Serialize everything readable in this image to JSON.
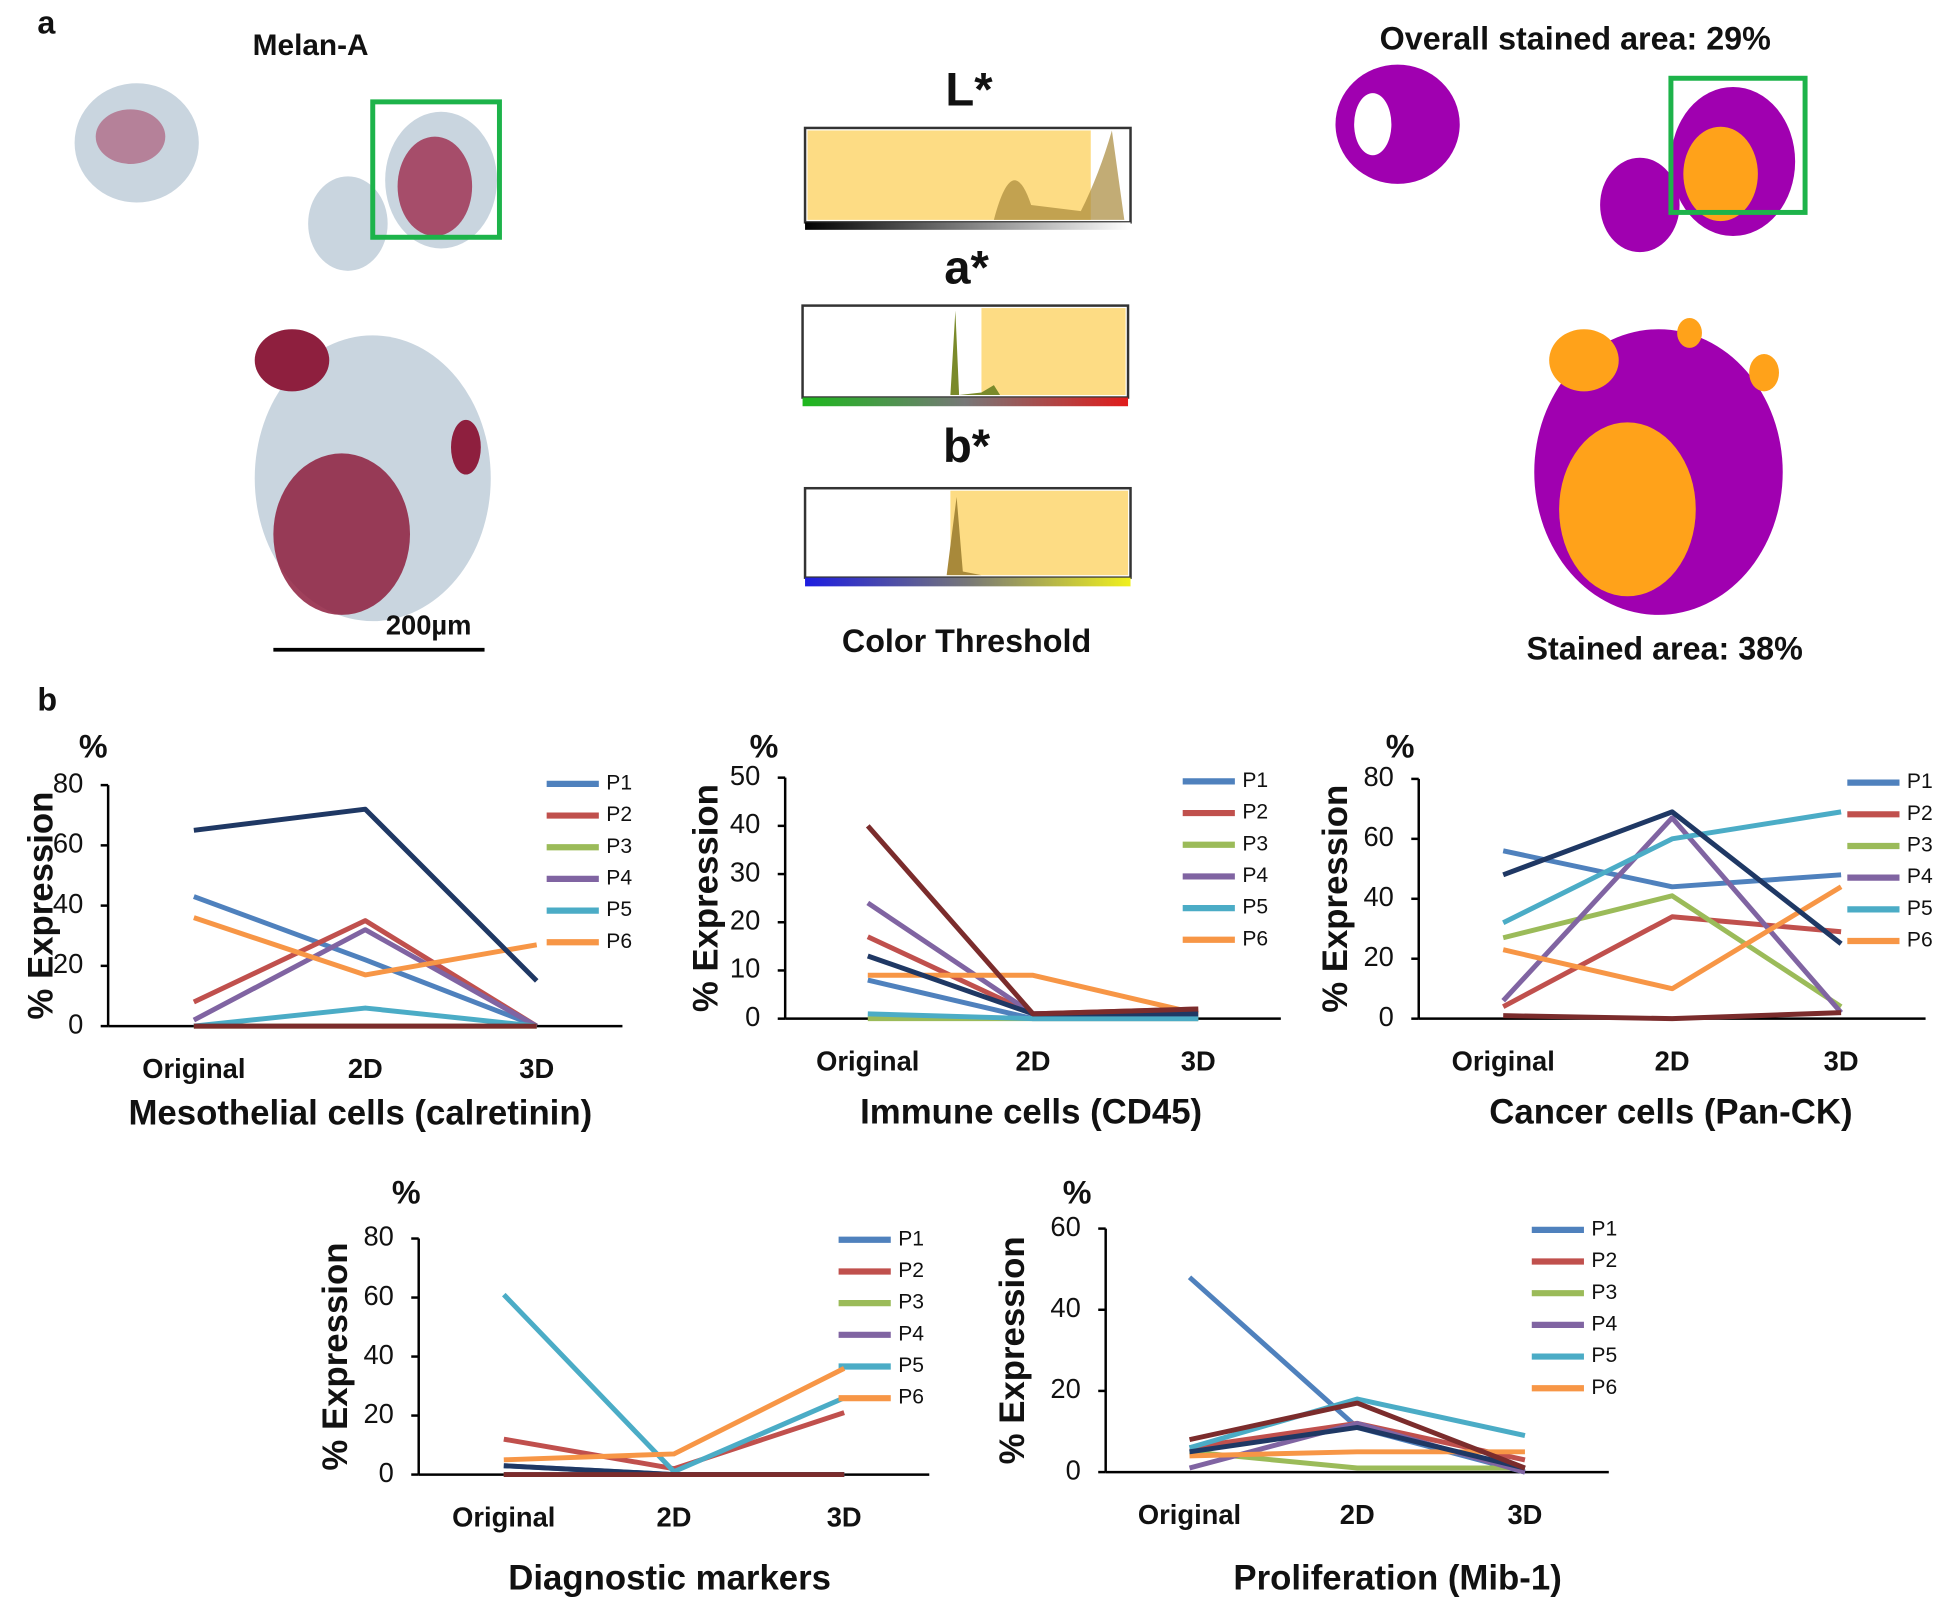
{
  "panel_a": {
    "label": "a",
    "stain": "Melan-A",
    "scale_bar": "200µm",
    "channels": [
      "L*",
      "a*",
      "b*"
    ],
    "threshold_title": "Color Threshold",
    "overall_area": "Overall stained area: 29%",
    "zoom_area": "Stained area: 38%"
  },
  "panel_b": {
    "label": "b"
  },
  "chart_data": [
    {
      "type": "line",
      "title": "Mesothelial cells (calretinin)",
      "y_label": "% Expression",
      "y_unit": "%",
      "categories": [
        "Original",
        "2D",
        "3D"
      ],
      "ylim": [
        0,
        80
      ],
      "yticks": [
        0,
        20,
        40,
        60,
        80
      ],
      "series": [
        {
          "name": "P1",
          "color": "#4f81bd",
          "values": [
            43,
            22,
            0
          ]
        },
        {
          "name": "P2",
          "color": "#c0504d",
          "values": [
            8,
            35,
            0
          ]
        },
        {
          "name": "P3",
          "color": "#9bbb59",
          "values": [
            0,
            0,
            0
          ]
        },
        {
          "name": "P4",
          "color": "#8064a2",
          "values": [
            2,
            32,
            0
          ]
        },
        {
          "name": "P5",
          "color": "#4bacc6",
          "values": [
            0,
            6,
            0
          ]
        },
        {
          "name": "P6",
          "color": "#f79646",
          "values": [
            36,
            17,
            27
          ]
        },
        {
          "color": "#1f3864",
          "values": [
            65,
            72,
            15
          ]
        },
        {
          "color": "#7b2c2c",
          "values": [
            0,
            0,
            0
          ]
        }
      ]
    },
    {
      "type": "line",
      "title": "Immune cells (CD45)",
      "y_label": "% Expression",
      "y_unit": "%",
      "categories": [
        "Original",
        "2D",
        "3D"
      ],
      "ylim": [
        0,
        50
      ],
      "yticks": [
        0,
        10,
        20,
        30,
        40,
        50
      ],
      "series": [
        {
          "name": "P1",
          "color": "#4f81bd",
          "values": [
            8,
            0,
            0
          ]
        },
        {
          "name": "P2",
          "color": "#c0504d",
          "values": [
            17,
            1,
            2
          ]
        },
        {
          "name": "P3",
          "color": "#9bbb59",
          "values": [
            0,
            0,
            0
          ]
        },
        {
          "name": "P4",
          "color": "#8064a2",
          "values": [
            24,
            1,
            1
          ]
        },
        {
          "name": "P5",
          "color": "#4bacc6",
          "values": [
            1,
            0,
            0
          ]
        },
        {
          "name": "P6",
          "color": "#f79646",
          "values": [
            9,
            9,
            1
          ]
        },
        {
          "color": "#1f3864",
          "values": [
            13,
            1,
            1
          ]
        },
        {
          "color": "#7b2c2c",
          "values": [
            40,
            1,
            2
          ]
        }
      ]
    },
    {
      "type": "line",
      "title": "Cancer cells (Pan-CK)",
      "y_label": "% Expression",
      "y_unit": "%",
      "categories": [
        "Original",
        "2D",
        "3D"
      ],
      "ylim": [
        0,
        80
      ],
      "yticks": [
        0,
        20,
        40,
        60,
        80
      ],
      "series": [
        {
          "name": "P1",
          "color": "#4f81bd",
          "values": [
            56,
            44,
            48
          ]
        },
        {
          "name": "P2",
          "color": "#c0504d",
          "values": [
            4,
            34,
            29
          ]
        },
        {
          "name": "P3",
          "color": "#9bbb59",
          "values": [
            27,
            41,
            4
          ]
        },
        {
          "name": "P4",
          "color": "#8064a2",
          "values": [
            6,
            67,
            2
          ]
        },
        {
          "name": "P5",
          "color": "#4bacc6",
          "values": [
            32,
            60,
            69
          ]
        },
        {
          "name": "P6",
          "color": "#f79646",
          "values": [
            23,
            10,
            44
          ]
        },
        {
          "color": "#1f3864",
          "values": [
            48,
            69,
            25
          ]
        },
        {
          "color": "#7b2c2c",
          "values": [
            1,
            0,
            2
          ]
        }
      ]
    },
    {
      "type": "line",
      "title": "Diagnostic markers",
      "y_label": "% Expression",
      "y_unit": "%",
      "categories": [
        "Original",
        "2D",
        "3D"
      ],
      "ylim": [
        0,
        80
      ],
      "yticks": [
        0,
        20,
        40,
        60,
        80
      ],
      "series": [
        {
          "name": "P1",
          "color": "#4f81bd",
          "values": [
            3,
            0,
            0
          ]
        },
        {
          "name": "P2",
          "color": "#c0504d",
          "values": [
            12,
            2,
            21
          ]
        },
        {
          "name": "P3",
          "color": "#9bbb59",
          "values": [
            0,
            0,
            0
          ]
        },
        {
          "name": "P4",
          "color": "#8064a2",
          "values": [
            0,
            0,
            0
          ]
        },
        {
          "name": "P5",
          "color": "#4bacc6",
          "values": [
            61,
            1,
            26
          ]
        },
        {
          "name": "P6",
          "color": "#f79646",
          "values": [
            5,
            7,
            36
          ]
        },
        {
          "color": "#1f3864",
          "values": [
            3,
            0,
            0
          ]
        },
        {
          "color": "#7b2c2c",
          "values": [
            0,
            0,
            0
          ]
        }
      ]
    },
    {
      "type": "line",
      "title": "Proliferation (Mib-1)",
      "y_label": "% Expression",
      "y_unit": "%",
      "categories": [
        "Original",
        "2D",
        "3D"
      ],
      "ylim": [
        0,
        60
      ],
      "yticks": [
        0,
        20,
        40,
        60
      ],
      "series": [
        {
          "name": "P1",
          "color": "#4f81bd",
          "values": [
            48,
            11,
            0
          ]
        },
        {
          "name": "P2",
          "color": "#c0504d",
          "values": [
            6,
            12,
            3
          ]
        },
        {
          "name": "P3",
          "color": "#9bbb59",
          "values": [
            5,
            1,
            1
          ]
        },
        {
          "name": "P4",
          "color": "#8064a2",
          "values": [
            1,
            12,
            0
          ]
        },
        {
          "name": "P5",
          "color": "#4bacc6",
          "values": [
            6,
            18,
            9
          ]
        },
        {
          "name": "P6",
          "color": "#f79646",
          "values": [
            4,
            5,
            5
          ]
        },
        {
          "color": "#1f3864",
          "values": [
            5,
            11,
            1
          ]
        },
        {
          "color": "#7b2c2c",
          "values": [
            8,
            17,
            1
          ]
        }
      ]
    }
  ]
}
